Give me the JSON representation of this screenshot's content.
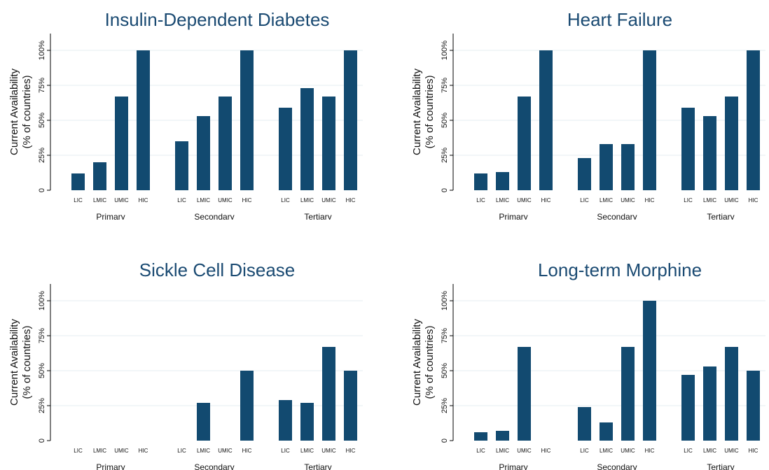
{
  "chart_data": [
    {
      "type": "bar",
      "title": "Insulin-Dependent Diabetes",
      "ylabel": [
        "Current Availability",
        "(% of countries)"
      ],
      "yticks": [
        "0",
        "25%",
        "50%",
        "75%",
        "100%"
      ],
      "ylim": [
        0,
        100
      ],
      "groups": [
        "Primary",
        "Secondary",
        "Tertiary"
      ],
      "categories": [
        "LIC",
        "LMIC",
        "UMIC",
        "HIC"
      ],
      "values": [
        [
          12,
          20,
          67,
          100
        ],
        [
          35,
          53,
          67,
          100
        ],
        [
          59,
          73,
          67,
          100
        ]
      ],
      "grid": true
    },
    {
      "type": "bar",
      "title": "Heart Failure",
      "ylabel": [
        "Current Availability",
        "(% of countries)"
      ],
      "yticks": [
        "0",
        "25%",
        "50%",
        "75%",
        "100%"
      ],
      "ylim": [
        0,
        100
      ],
      "groups": [
        "Primary",
        "Secondary",
        "Tertiary"
      ],
      "categories": [
        "LIC",
        "LMIC",
        "UMIC",
        "HIC"
      ],
      "values": [
        [
          12,
          13,
          67,
          100
        ],
        [
          23,
          33,
          33,
          100
        ],
        [
          59,
          53,
          67,
          100
        ]
      ],
      "grid": true
    },
    {
      "type": "bar",
      "title": "Sickle Cell Disease",
      "ylabel": [
        "Current Availability",
        "(% of countries)"
      ],
      "yticks": [
        "0",
        "25%",
        "50%",
        "75%",
        "100%"
      ],
      "ylim": [
        0,
        100
      ],
      "groups": [
        "Primary",
        "Secondary",
        "Tertiary"
      ],
      "categories": [
        "LIC",
        "LMIC",
        "UMIC",
        "HIC"
      ],
      "values": [
        [
          0,
          0,
          0,
          0
        ],
        [
          0,
          27,
          0,
          50
        ],
        [
          29,
          27,
          67,
          50
        ]
      ],
      "grid": true
    },
    {
      "type": "bar",
      "title": "Long-term Morphine",
      "ylabel": [
        "Current Availability",
        "(% of countries)"
      ],
      "yticks": [
        "0",
        "25%",
        "50%",
        "75%",
        "100%"
      ],
      "ylim": [
        0,
        100
      ],
      "groups": [
        "Primary",
        "Secondary",
        "Tertiary"
      ],
      "categories": [
        "LIC",
        "LMIC",
        "UMIC",
        "HIC"
      ],
      "values": [
        [
          6,
          7,
          67,
          0
        ],
        [
          24,
          13,
          67,
          100
        ],
        [
          47,
          53,
          67,
          50
        ]
      ],
      "grid": true
    }
  ]
}
